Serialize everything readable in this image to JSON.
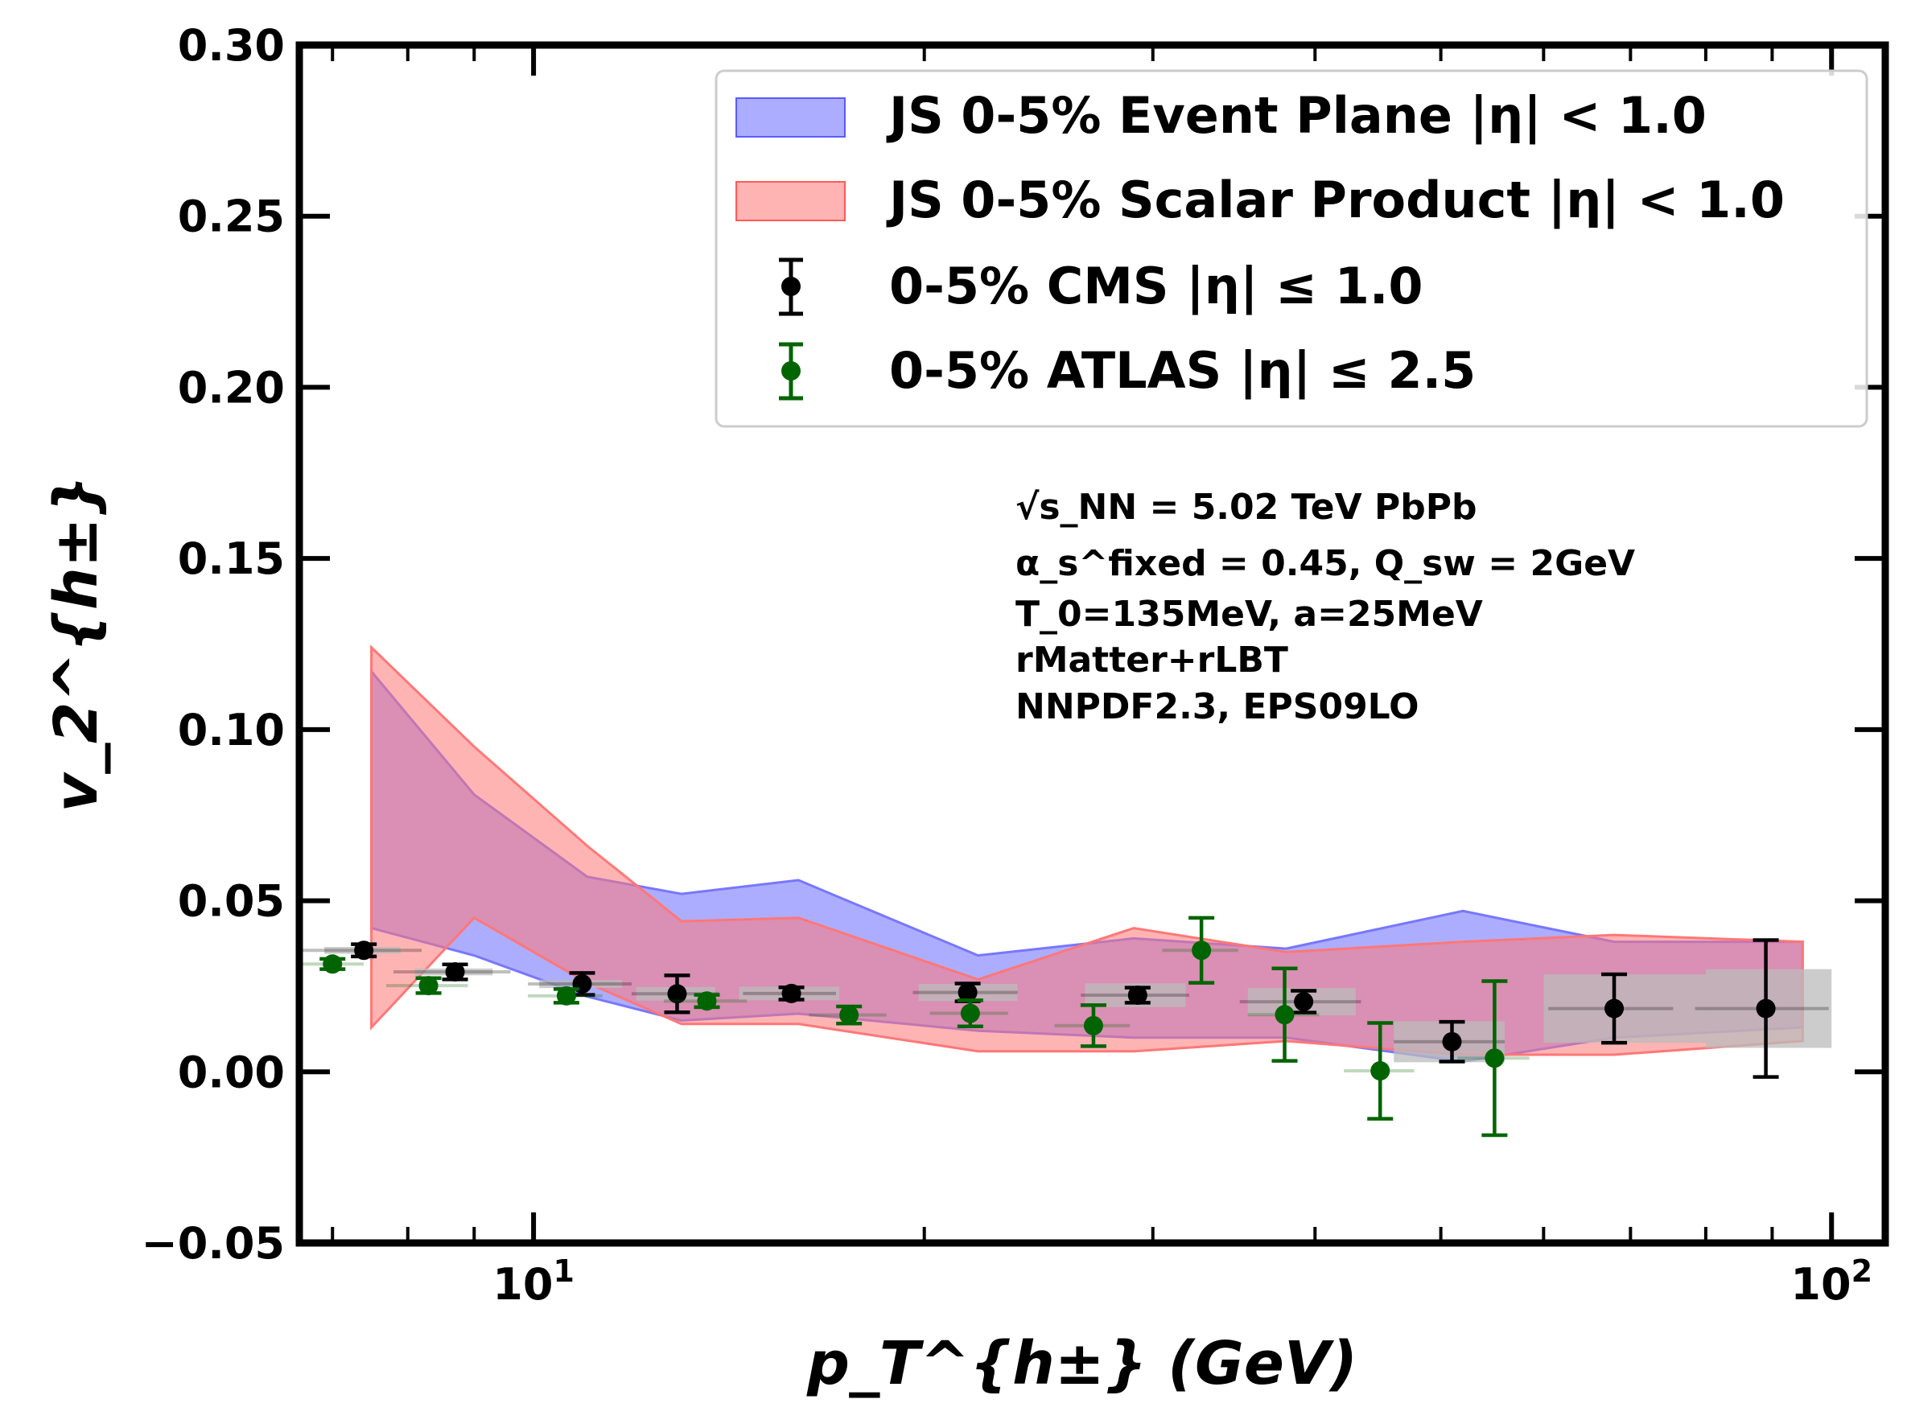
{
  "chart_data": {
    "type": "scatter",
    "title": "",
    "xlabel": "p_T^{h±} (GeV)",
    "ylabel": "v_2^{h±}",
    "x_scale": "log",
    "xlim": [
      6.6,
      110
    ],
    "ylim": [
      -0.05,
      0.3
    ],
    "y_ticks": [
      "0.30",
      "0.25",
      "0.20",
      "0.15",
      "0.10",
      "0.05",
      "0.00",
      "−0.05"
    ],
    "y_tick_values": [
      0.3,
      0.25,
      0.2,
      0.15,
      0.1,
      0.05,
      0.0,
      -0.05
    ],
    "x_ticks": [
      {
        "base": "10",
        "exp": "1",
        "value": 10
      },
      {
        "base": "10",
        "exp": "2",
        "value": 100
      }
    ],
    "legend_position": "top-right",
    "series": [
      {
        "name": "JS 0-5% Event Plane |η| < 1.0",
        "kind": "band",
        "color": "#7777ff",
        "x": [
          7.5,
          9.0,
          11.0,
          13.0,
          16.0,
          22.0,
          29.0,
          38.0,
          52.0,
          68.0,
          95.0
        ],
        "lower": [
          0.042,
          0.034,
          0.022,
          0.015,
          0.017,
          0.012,
          0.01,
          0.01,
          0.003,
          0.01,
          0.013
        ],
        "upper": [
          0.117,
          0.081,
          0.057,
          0.052,
          0.056,
          0.034,
          0.039,
          0.036,
          0.047,
          0.038,
          0.038
        ]
      },
      {
        "name": "JS 0-5% Scalar Product |η| < 1.0",
        "kind": "band",
        "color": "#ff7777",
        "x": [
          7.5,
          9.0,
          11.0,
          13.0,
          16.0,
          22.0,
          29.0,
          38.0,
          52.0,
          68.0,
          95.0
        ],
        "lower": [
          0.013,
          0.045,
          0.026,
          0.014,
          0.014,
          0.006,
          0.006,
          0.009,
          0.005,
          0.005,
          0.009
        ],
        "upper": [
          0.124,
          0.095,
          0.066,
          0.044,
          0.045,
          0.027,
          0.042,
          0.035,
          0.038,
          0.04,
          0.038
        ]
      },
      {
        "name": "0-5% CMS |η| ≤ 1.0",
        "kind": "points",
        "color": "#000000",
        "x": [
          7.4,
          8.7,
          10.9,
          12.9,
          15.8,
          21.6,
          29.2,
          39.2,
          51.0,
          68.0,
          89.0
        ],
        "y": [
          0.0355,
          0.0292,
          0.0257,
          0.0228,
          0.0229,
          0.0232,
          0.0224,
          0.0205,
          0.0088,
          0.0185,
          0.0185
        ],
        "err": [
          0.0018,
          0.0022,
          0.0032,
          0.0054,
          0.0018,
          0.0026,
          0.0022,
          0.0032,
          0.0058,
          0.01,
          0.02
        ],
        "xerr": [
          0.8,
          0.9,
          1.0,
          1.0,
          1.3,
          2.0,
          2.8,
          4.2,
          5.0,
          7.5,
          10.5
        ]
      },
      {
        "name": "0-5% ATLAS |η| ≤ 2.5",
        "kind": "points",
        "color": "#006400",
        "x": [
          7.0,
          8.3,
          10.6,
          13.6,
          17.5,
          21.7,
          27.0,
          32.7,
          37.9,
          44.9,
          55.0
        ],
        "y": [
          0.0315,
          0.0252,
          0.0222,
          0.0207,
          0.0166,
          0.0171,
          0.0135,
          0.0355,
          0.0167,
          0.0003,
          0.004
        ],
        "err": [
          0.0015,
          0.0022,
          0.002,
          0.0018,
          0.0025,
          0.0038,
          0.006,
          0.0095,
          0.0135,
          0.014,
          0.0225
        ],
        "xerr": [
          0.4,
          0.6,
          0.7,
          1.0,
          1.2,
          1.5,
          1.8,
          2.2,
          2.4,
          2.8,
          3.5
        ]
      },
      {
        "name": "CMS systematic uncertainty",
        "kind": "boxes",
        "color": "#bbbbbb",
        "x": [
          7.4,
          8.7,
          10.9,
          12.9,
          15.8,
          21.6,
          29.2,
          39.2,
          51.0,
          68.0,
          89.0
        ],
        "y": [
          0.0355,
          0.0292,
          0.0257,
          0.0228,
          0.0229,
          0.0232,
          0.0224,
          0.0205,
          0.0088,
          0.0185,
          0.0185
        ],
        "syst": [
          0.001,
          0.001,
          0.0012,
          0.002,
          0.002,
          0.0025,
          0.0035,
          0.004,
          0.006,
          0.01,
          0.0115
        ],
        "xlo": [
          6.9,
          8.1,
          10.1,
          12.0,
          14.4,
          19.8,
          26.6,
          35.5,
          46.0,
          60.0,
          80.0
        ],
        "xhi": [
          7.9,
          9.3,
          11.7,
          13.8,
          17.2,
          23.6,
          31.8,
          43.0,
          56.0,
          80.0,
          100.0
        ]
      }
    ],
    "legend": [
      {
        "label": "JS 0-5% Event Plane |η| < 1.0",
        "color": "#7777ff"
      },
      {
        "label": "JS 0-5% Scalar Product |η| < 1.0",
        "color": "#ff7777"
      },
      {
        "label": "0-5% CMS |η| ≤ 1.0",
        "color": "#000000"
      },
      {
        "label": "0-5% ATLAS |η| ≤ 2.5",
        "color": "#006400"
      }
    ],
    "annotations": [
      "√s_NN = 5.02 TeV PbPb",
      "α_s^fixed = 0.45, Q_sw = 2GeV",
      "T_0=135MeV, a=25MeV",
      "rMatter+rLBT",
      "NNPDF2.3, EPS09LO"
    ]
  }
}
